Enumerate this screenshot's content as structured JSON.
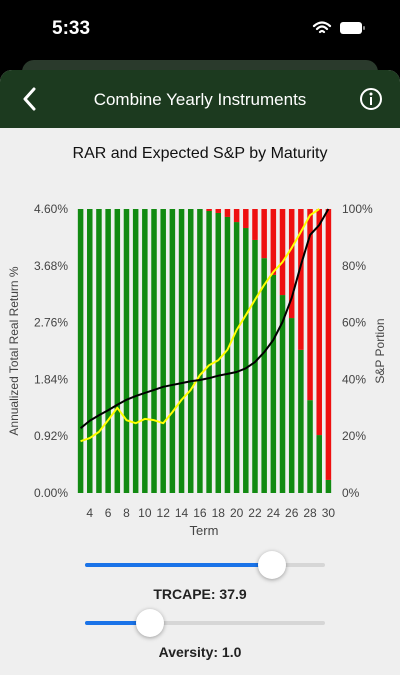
{
  "status_bar": {
    "time": "5:33"
  },
  "header": {
    "title": "Combine Yearly Instruments"
  },
  "chart_data": {
    "type": "bar",
    "stacked": true,
    "title": "RAR and Expected S&P by Maturity",
    "x_label": "Term",
    "y_label": "Annualized Total Real Return %",
    "y2_label": "S&P Portion",
    "x": [
      3,
      4,
      5,
      6,
      7,
      8,
      9,
      10,
      11,
      12,
      13,
      14,
      15,
      16,
      17,
      18,
      19,
      20,
      21,
      22,
      23,
      24,
      25,
      26,
      27,
      28,
      29,
      30
    ],
    "xlim": [
      2.5,
      30.5
    ],
    "xticks": [
      4,
      6,
      8,
      10,
      12,
      14,
      16,
      18,
      20,
      22,
      24,
      26,
      28,
      30
    ],
    "ylim": [
      0,
      4.6
    ],
    "yticks": [
      {
        "value": 0,
        "label": "0.00%"
      },
      {
        "value": 0.92,
        "label": "0.92%"
      },
      {
        "value": 1.84,
        "label": "1.84%"
      },
      {
        "value": 2.76,
        "label": "2.76%"
      },
      {
        "value": 3.68,
        "label": "3.68%"
      },
      {
        "value": 4.6,
        "label": "4.60%"
      }
    ],
    "y2lim": [
      0,
      100
    ],
    "y2ticks": [
      {
        "value": 0,
        "label": "0%"
      },
      {
        "value": 20,
        "label": "20%"
      },
      {
        "value": 40,
        "label": "40%"
      },
      {
        "value": 60,
        "label": "60%"
      },
      {
        "value": 80,
        "label": "80%"
      },
      {
        "value": 100,
        "label": "100%"
      }
    ],
    "series": [
      {
        "type": "bar",
        "axis": "y2",
        "color": "#128a12",
        "values": [
          100,
          100,
          100,
          100,
          100,
          100,
          100,
          100,
          100,
          100,
          100,
          100,
          100,
          100,
          99.3,
          98.6,
          97.2,
          95.4,
          93.3,
          89.1,
          82.7,
          76.8,
          69.7,
          61.6,
          50.4,
          32.7,
          20.4,
          4.6
        ]
      },
      {
        "type": "bar",
        "axis": "y2",
        "color": "#ee1111",
        "values": [
          0,
          0,
          0,
          0,
          0,
          0,
          0,
          0,
          0,
          0,
          0,
          0,
          0,
          0,
          0.7,
          1.4,
          2.8,
          4.6,
          6.7,
          10.9,
          17.3,
          23.2,
          30.3,
          38.4,
          49.6,
          67.3,
          79.6,
          95.4
        ]
      },
      {
        "type": "line",
        "color": "#ffff00",
        "values": [
          0.84,
          0.89,
          0.99,
          1.18,
          1.38,
          1.18,
          1.13,
          1.2,
          1.18,
          1.13,
          1.31,
          1.51,
          1.67,
          1.91,
          2.07,
          2.15,
          2.32,
          2.64,
          2.88,
          3.13,
          3.37,
          3.58,
          3.74,
          3.97,
          4.23,
          4.5,
          4.6,
          null
        ]
      },
      {
        "type": "line",
        "color": "#000000",
        "values": [
          1.05,
          1.17,
          1.26,
          1.34,
          1.43,
          1.51,
          1.57,
          1.62,
          1.67,
          1.72,
          1.75,
          1.78,
          1.81,
          1.83,
          1.86,
          1.9,
          1.93,
          1.96,
          2.02,
          2.12,
          2.28,
          2.48,
          2.77,
          3.16,
          3.69,
          4.18,
          4.34,
          4.6
        ]
      }
    ]
  },
  "controls": {
    "trcape_label": "TRCAPE: 37.9",
    "aversity_label": "Aversity: 1.0"
  }
}
